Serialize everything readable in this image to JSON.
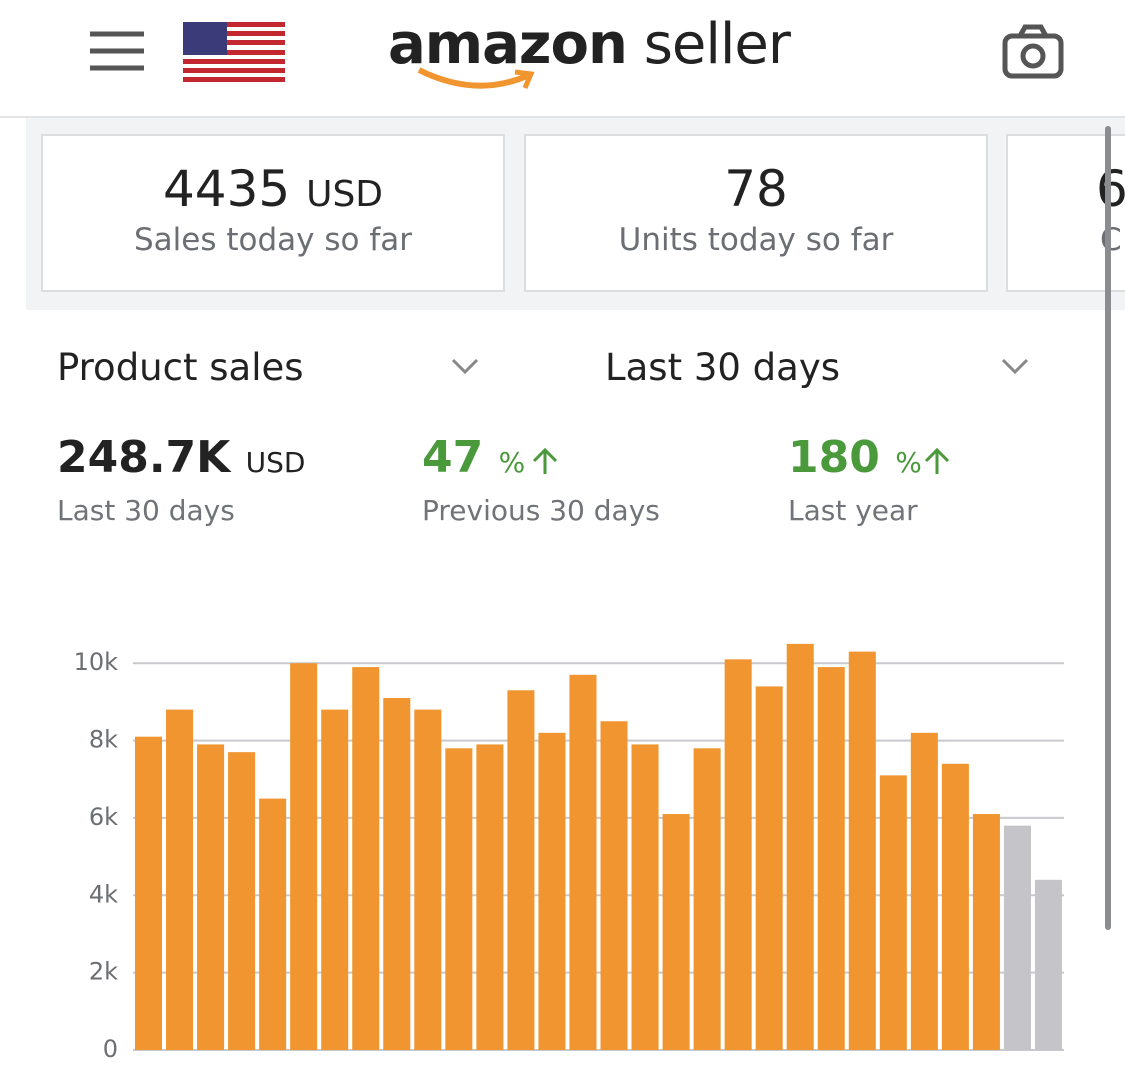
{
  "header": {
    "logo_bold": "amazon",
    "logo_light": "seller"
  },
  "cards": [
    {
      "value": "4435",
      "unit": "USD",
      "label": "Sales today so far"
    },
    {
      "value": "78",
      "label": "Units today so far"
    },
    {
      "value": "6",
      "label": "C"
    }
  ],
  "filters": {
    "metric": "Product sales",
    "period": "Last 30 days"
  },
  "summary": [
    {
      "value": "248.7K",
      "unit": "USD",
      "label": "Last 30 days"
    },
    {
      "value": "47",
      "unit": "%",
      "label": "Previous 30 days"
    },
    {
      "value": "180",
      "unit": "%",
      "label": "Last year"
    }
  ],
  "chart_data": {
    "type": "bar",
    "values": [
      8100,
      8800,
      7900,
      7700,
      6500,
      10000,
      8800,
      9900,
      9100,
      8800,
      7800,
      7900,
      9300,
      8200,
      9700,
      8500,
      7900,
      6100,
      7800,
      10100,
      9400,
      10500,
      9900,
      10300,
      7100,
      8200,
      7400,
      6100,
      5800,
      4400
    ],
    "colors": [
      "#f0952f",
      "#f0952f",
      "#f0952f",
      "#f0952f",
      "#f0952f",
      "#f0952f",
      "#f0952f",
      "#f0952f",
      "#f0952f",
      "#f0952f",
      "#f0952f",
      "#f0952f",
      "#f0952f",
      "#f0952f",
      "#f0952f",
      "#f0952f",
      "#f0952f",
      "#f0952f",
      "#f0952f",
      "#f0952f",
      "#f0952f",
      "#f0952f",
      "#f0952f",
      "#f0952f",
      "#f0952f",
      "#f0952f",
      "#f0952f",
      "#f0952f",
      "#c4c4c9",
      "#c4c4c9"
    ],
    "ylim": [
      0,
      10600
    ],
    "yticks": [
      0,
      {
        "value": 2000,
        "label": "2k"
      },
      {
        "value": 4000,
        "label": "4k"
      },
      {
        "value": 6000,
        "label": "6k"
      },
      {
        "value": 8000,
        "label": "8k"
      },
      {
        "value": 10000,
        "label": "10k"
      }
    ],
    "grid": true
  }
}
